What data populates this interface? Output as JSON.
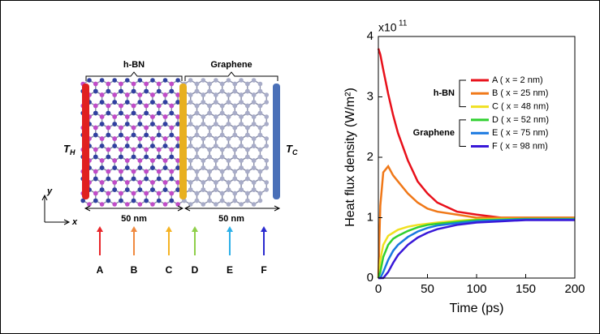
{
  "diagram": {
    "region_labels": [
      "h-BN",
      "Graphene"
    ],
    "t_hot": "T",
    "t_hot_sub": "H",
    "t_cold": "T",
    "t_cold_sub": "C",
    "axis_y": "y",
    "axis_x": "x",
    "lengths": [
      "50 nm",
      "50 nm"
    ],
    "probes": [
      "A",
      "B",
      "C",
      "D",
      "E",
      "F"
    ],
    "probe_colors": [
      "#e8262a",
      "#f08a40",
      "#f5b324",
      "#8fcf4a",
      "#2db0e8",
      "#2a2acf"
    ]
  },
  "chart_data": {
    "type": "line",
    "y_label": "Heat flux density (W/m²)",
    "x_label": "Time (ps)",
    "y_multiplier": "x10",
    "y_multiplier_exp": "11",
    "x": [
      0,
      2,
      5,
      10,
      15,
      20,
      30,
      40,
      50,
      60,
      80,
      100,
      125,
      150,
      175,
      200
    ],
    "xlim": [
      0,
      200
    ],
    "xticks": [
      0,
      50,
      100,
      150,
      200
    ],
    "ylim": [
      0,
      4
    ],
    "yticks": [
      0,
      1,
      2,
      3,
      4
    ],
    "legend_groups": [
      {
        "label": "h-BN",
        "members": [
          0,
          1,
          2
        ]
      },
      {
        "label": "Graphene",
        "members": [
          3,
          4,
          5
        ]
      }
    ],
    "series": [
      {
        "name": "A ( x = 2 nm)",
        "color": "#e8101a",
        "values": [
          3.8,
          3.7,
          3.45,
          3.05,
          2.7,
          2.4,
          1.95,
          1.6,
          1.4,
          1.25,
          1.1,
          1.05,
          1.0,
          1.0,
          1.0,
          1.0
        ]
      },
      {
        "name": "B ( x = 25 nm)",
        "color": "#f07818",
        "values": [
          0,
          1.2,
          1.75,
          1.85,
          1.7,
          1.6,
          1.4,
          1.25,
          1.15,
          1.1,
          1.05,
          1.0,
          1.0,
          1.0,
          1.0,
          1.0
        ]
      },
      {
        "name": "C ( x = 48 nm)",
        "color": "#f0e020",
        "values": [
          0,
          0.3,
          0.55,
          0.7,
          0.75,
          0.8,
          0.85,
          0.88,
          0.9,
          0.92,
          0.95,
          0.97,
          0.98,
          0.98,
          0.98,
          0.98
        ]
      },
      {
        "name": "D ( x = 52 nm)",
        "color": "#30d030",
        "values": [
          0,
          0.1,
          0.35,
          0.55,
          0.65,
          0.7,
          0.78,
          0.84,
          0.88,
          0.9,
          0.93,
          0.96,
          0.97,
          0.98,
          0.98,
          0.98
        ]
      },
      {
        "name": "E ( x = 75 nm)",
        "color": "#1878e0",
        "values": [
          0,
          0,
          0.1,
          0.3,
          0.45,
          0.55,
          0.68,
          0.77,
          0.83,
          0.87,
          0.91,
          0.94,
          0.96,
          0.97,
          0.97,
          0.97
        ]
      },
      {
        "name": "F ( x = 98 nm)",
        "color": "#3818d8",
        "values": [
          0,
          0,
          0,
          0.1,
          0.25,
          0.38,
          0.55,
          0.67,
          0.75,
          0.81,
          0.88,
          0.92,
          0.94,
          0.96,
          0.96,
          0.96
        ]
      }
    ]
  }
}
